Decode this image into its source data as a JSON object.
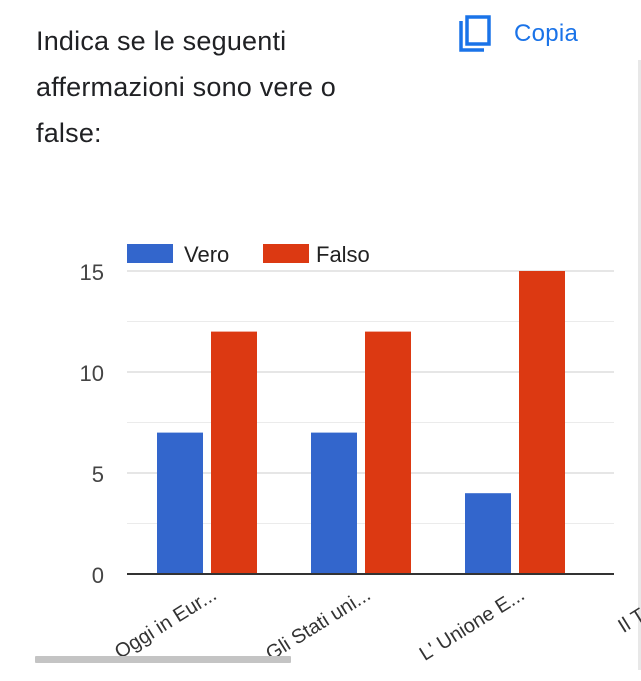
{
  "question": {
    "line1": "Indica se le seguenti",
    "line2": "affermazioni sono vere o",
    "line3": "false:"
  },
  "copy_button": {
    "label": "Copia",
    "icon": "copy-icon"
  },
  "colors": {
    "vero": "#3366cc",
    "falso": "#dc3912",
    "accent": "#1a73e8"
  },
  "chart_data": {
    "type": "bar",
    "categories": [
      "Oggi in Eur...",
      "Gli Stati uni...",
      "L' Unione E...",
      "Il Tratta"
    ],
    "series": [
      {
        "name": "Vero",
        "values": [
          7,
          7,
          4,
          null
        ]
      },
      {
        "name": "Falso",
        "values": [
          12,
          12,
          15,
          null
        ]
      }
    ],
    "yticks": [
      0,
      5,
      10,
      15
    ],
    "ylim": [
      0,
      15
    ],
    "grid": true,
    "legend": "top-left",
    "title": "",
    "xlabel": "",
    "ylabel": ""
  }
}
